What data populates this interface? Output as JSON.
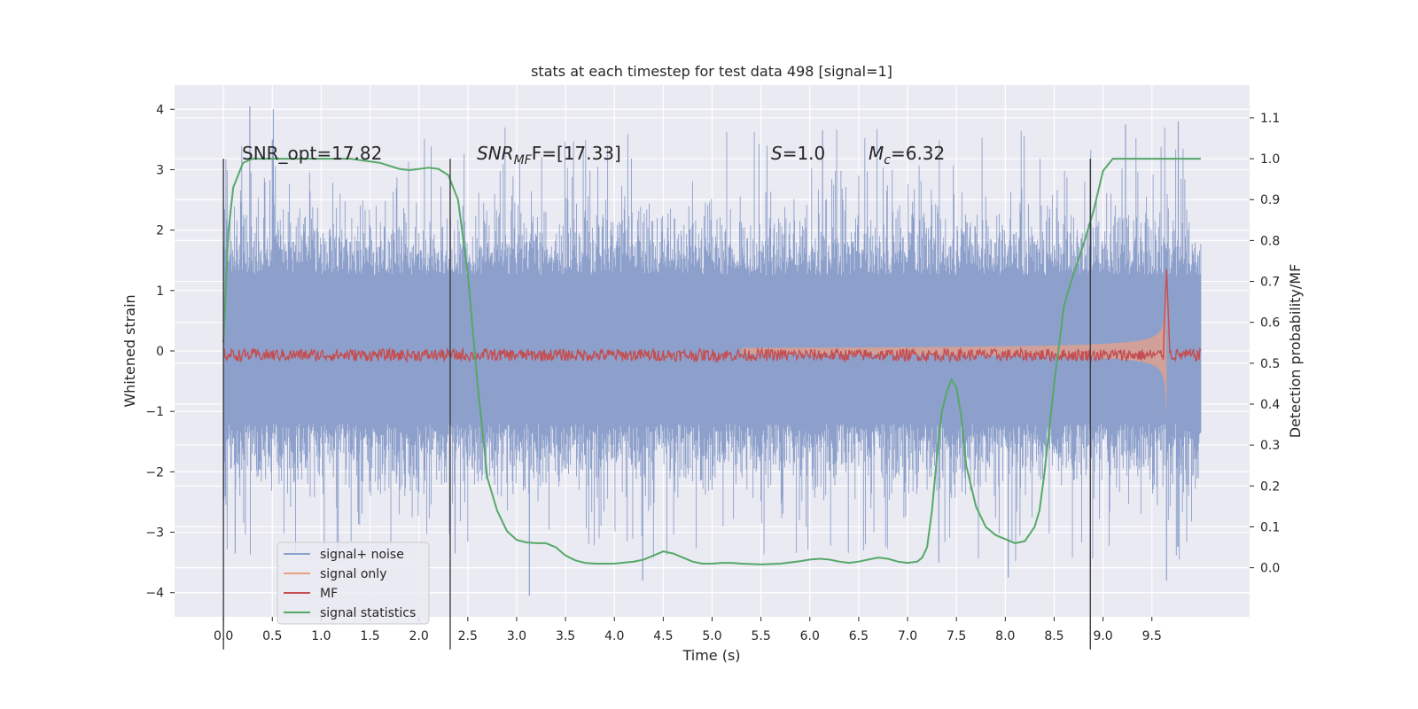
{
  "chart_data": {
    "type": "line",
    "title": "stats at each timestep for test data 498 [signal=1]",
    "xlabel": "Time (s)",
    "ylabel": "Whitened strain",
    "y2label": "Detection probability/MF",
    "xlim": [
      -0.5,
      10.5
    ],
    "ylim": [
      -4.4,
      4.4
    ],
    "y2lim": [
      -0.12,
      1.18
    ],
    "x_ticks": [
      0.0,
      0.5,
      1.0,
      1.5,
      2.0,
      2.5,
      3.0,
      3.5,
      4.0,
      4.5,
      5.0,
      5.5,
      6.0,
      6.5,
      7.0,
      7.5,
      8.0,
      8.5,
      9.0,
      9.5
    ],
    "x_tick_labels": [
      "0.0",
      "0.5",
      "1.0",
      "1.5",
      "2.0",
      "2.5",
      "3.0",
      "3.5",
      "4.0",
      "4.5",
      "5.0",
      "5.5",
      "6.0",
      "6.5",
      "7.0",
      "7.5",
      "8.0",
      "8.5",
      "9.0",
      "9.5"
    ],
    "y_ticks": [
      -4,
      -3,
      -2,
      -1,
      0,
      1,
      2,
      3,
      4
    ],
    "y_tick_labels": [
      "−4",
      "−3",
      "−2",
      "−1",
      "0",
      "1",
      "2",
      "3",
      "4"
    ],
    "y2_ticks": [
      0.0,
      0.1,
      0.2,
      0.3,
      0.4,
      0.5,
      0.6,
      0.7,
      0.8,
      0.9,
      1.0,
      1.1
    ],
    "y2_tick_labels": [
      "0.0",
      "0.1",
      "0.2",
      "0.3",
      "0.4",
      "0.5",
      "0.6",
      "0.7",
      "0.8",
      "0.9",
      "1.0",
      "1.1"
    ],
    "grid": true,
    "legend_placement": "lower-left",
    "series": [
      {
        "name": "signal+ noise",
        "color": "#8da0cb",
        "description_values": "whitened strain noise band, about -1 to 1.3 typical, spikes up to 4.0 and down to -4.0",
        "x_range": [
          0.0,
          10.0
        ]
      },
      {
        "name": "signal only",
        "color": "#e8a088",
        "chirp": {
          "t_start": 5.3,
          "t_merger": 9.65,
          "peak_amplitude": 1.7
        }
      },
      {
        "name": "MF",
        "color": "#c44e52",
        "baseline": 0.52,
        "peak": {
          "x": 9.65,
          "y": 0.73
        }
      },
      {
        "name": "signal statistics",
        "color": "#55a868",
        "x": [
          0.0,
          0.05,
          0.1,
          0.2,
          0.3,
          0.5,
          0.8,
          1.0,
          1.3,
          1.6,
          1.8,
          1.9,
          2.0,
          2.1,
          2.2,
          2.3,
          2.4,
          2.5,
          2.6,
          2.7,
          2.8,
          2.9,
          3.0,
          3.1,
          3.2,
          3.3,
          3.4,
          3.5,
          3.6,
          3.7,
          3.8,
          4.0,
          4.2,
          4.3,
          4.4,
          4.5,
          4.6,
          4.7,
          4.8,
          4.9,
          5.0,
          5.1,
          5.2,
          5.3,
          5.5,
          5.7,
          5.9,
          6.0,
          6.1,
          6.2,
          6.3,
          6.4,
          6.5,
          6.6,
          6.7,
          6.8,
          6.9,
          7.0,
          7.1,
          7.15,
          7.2,
          7.25,
          7.3,
          7.35,
          7.4,
          7.45,
          7.5,
          7.55,
          7.6,
          7.7,
          7.8,
          7.9,
          8.0,
          8.1,
          8.2,
          8.3,
          8.35,
          8.4,
          8.5,
          8.6,
          8.7,
          8.8,
          8.9,
          9.0,
          9.1,
          9.2,
          9.4,
          9.6,
          10.0
        ],
        "y": [
          0.55,
          0.82,
          0.93,
          0.99,
          1.0,
          1.0,
          1.0,
          1.0,
          1.0,
          0.99,
          0.975,
          0.972,
          0.975,
          0.978,
          0.975,
          0.96,
          0.9,
          0.72,
          0.45,
          0.22,
          0.14,
          0.09,
          0.068,
          0.062,
          0.06,
          0.06,
          0.05,
          0.03,
          0.018,
          0.012,
          0.01,
          0.01,
          0.015,
          0.02,
          0.03,
          0.04,
          0.035,
          0.025,
          0.015,
          0.01,
          0.01,
          0.012,
          0.012,
          0.01,
          0.008,
          0.01,
          0.016,
          0.02,
          0.022,
          0.02,
          0.015,
          0.012,
          0.015,
          0.02,
          0.025,
          0.022,
          0.015,
          0.012,
          0.015,
          0.025,
          0.05,
          0.14,
          0.27,
          0.38,
          0.43,
          0.46,
          0.44,
          0.37,
          0.25,
          0.15,
          0.1,
          0.08,
          0.07,
          0.06,
          0.065,
          0.1,
          0.14,
          0.23,
          0.45,
          0.64,
          0.72,
          0.79,
          0.87,
          0.97,
          1.0,
          1.0,
          1.0,
          1.0,
          1.0
        ]
      }
    ],
    "vertical_markers": [
      0.0,
      2.32,
      8.87
    ],
    "vertical_marker_range": [
      -0.2,
      1.0
    ]
  },
  "annotations": {
    "snr_opt": "SNR_opt=17.82",
    "snr_mf_pre": "SNR",
    "snr_mf_sub": "MF",
    "snr_mf_post": "F=[17.33]",
    "s_pre": "S",
    "s_post": "=1.0",
    "mc_pre": "M",
    "mc_sub": "c",
    "mc_post": "=6.32"
  }
}
